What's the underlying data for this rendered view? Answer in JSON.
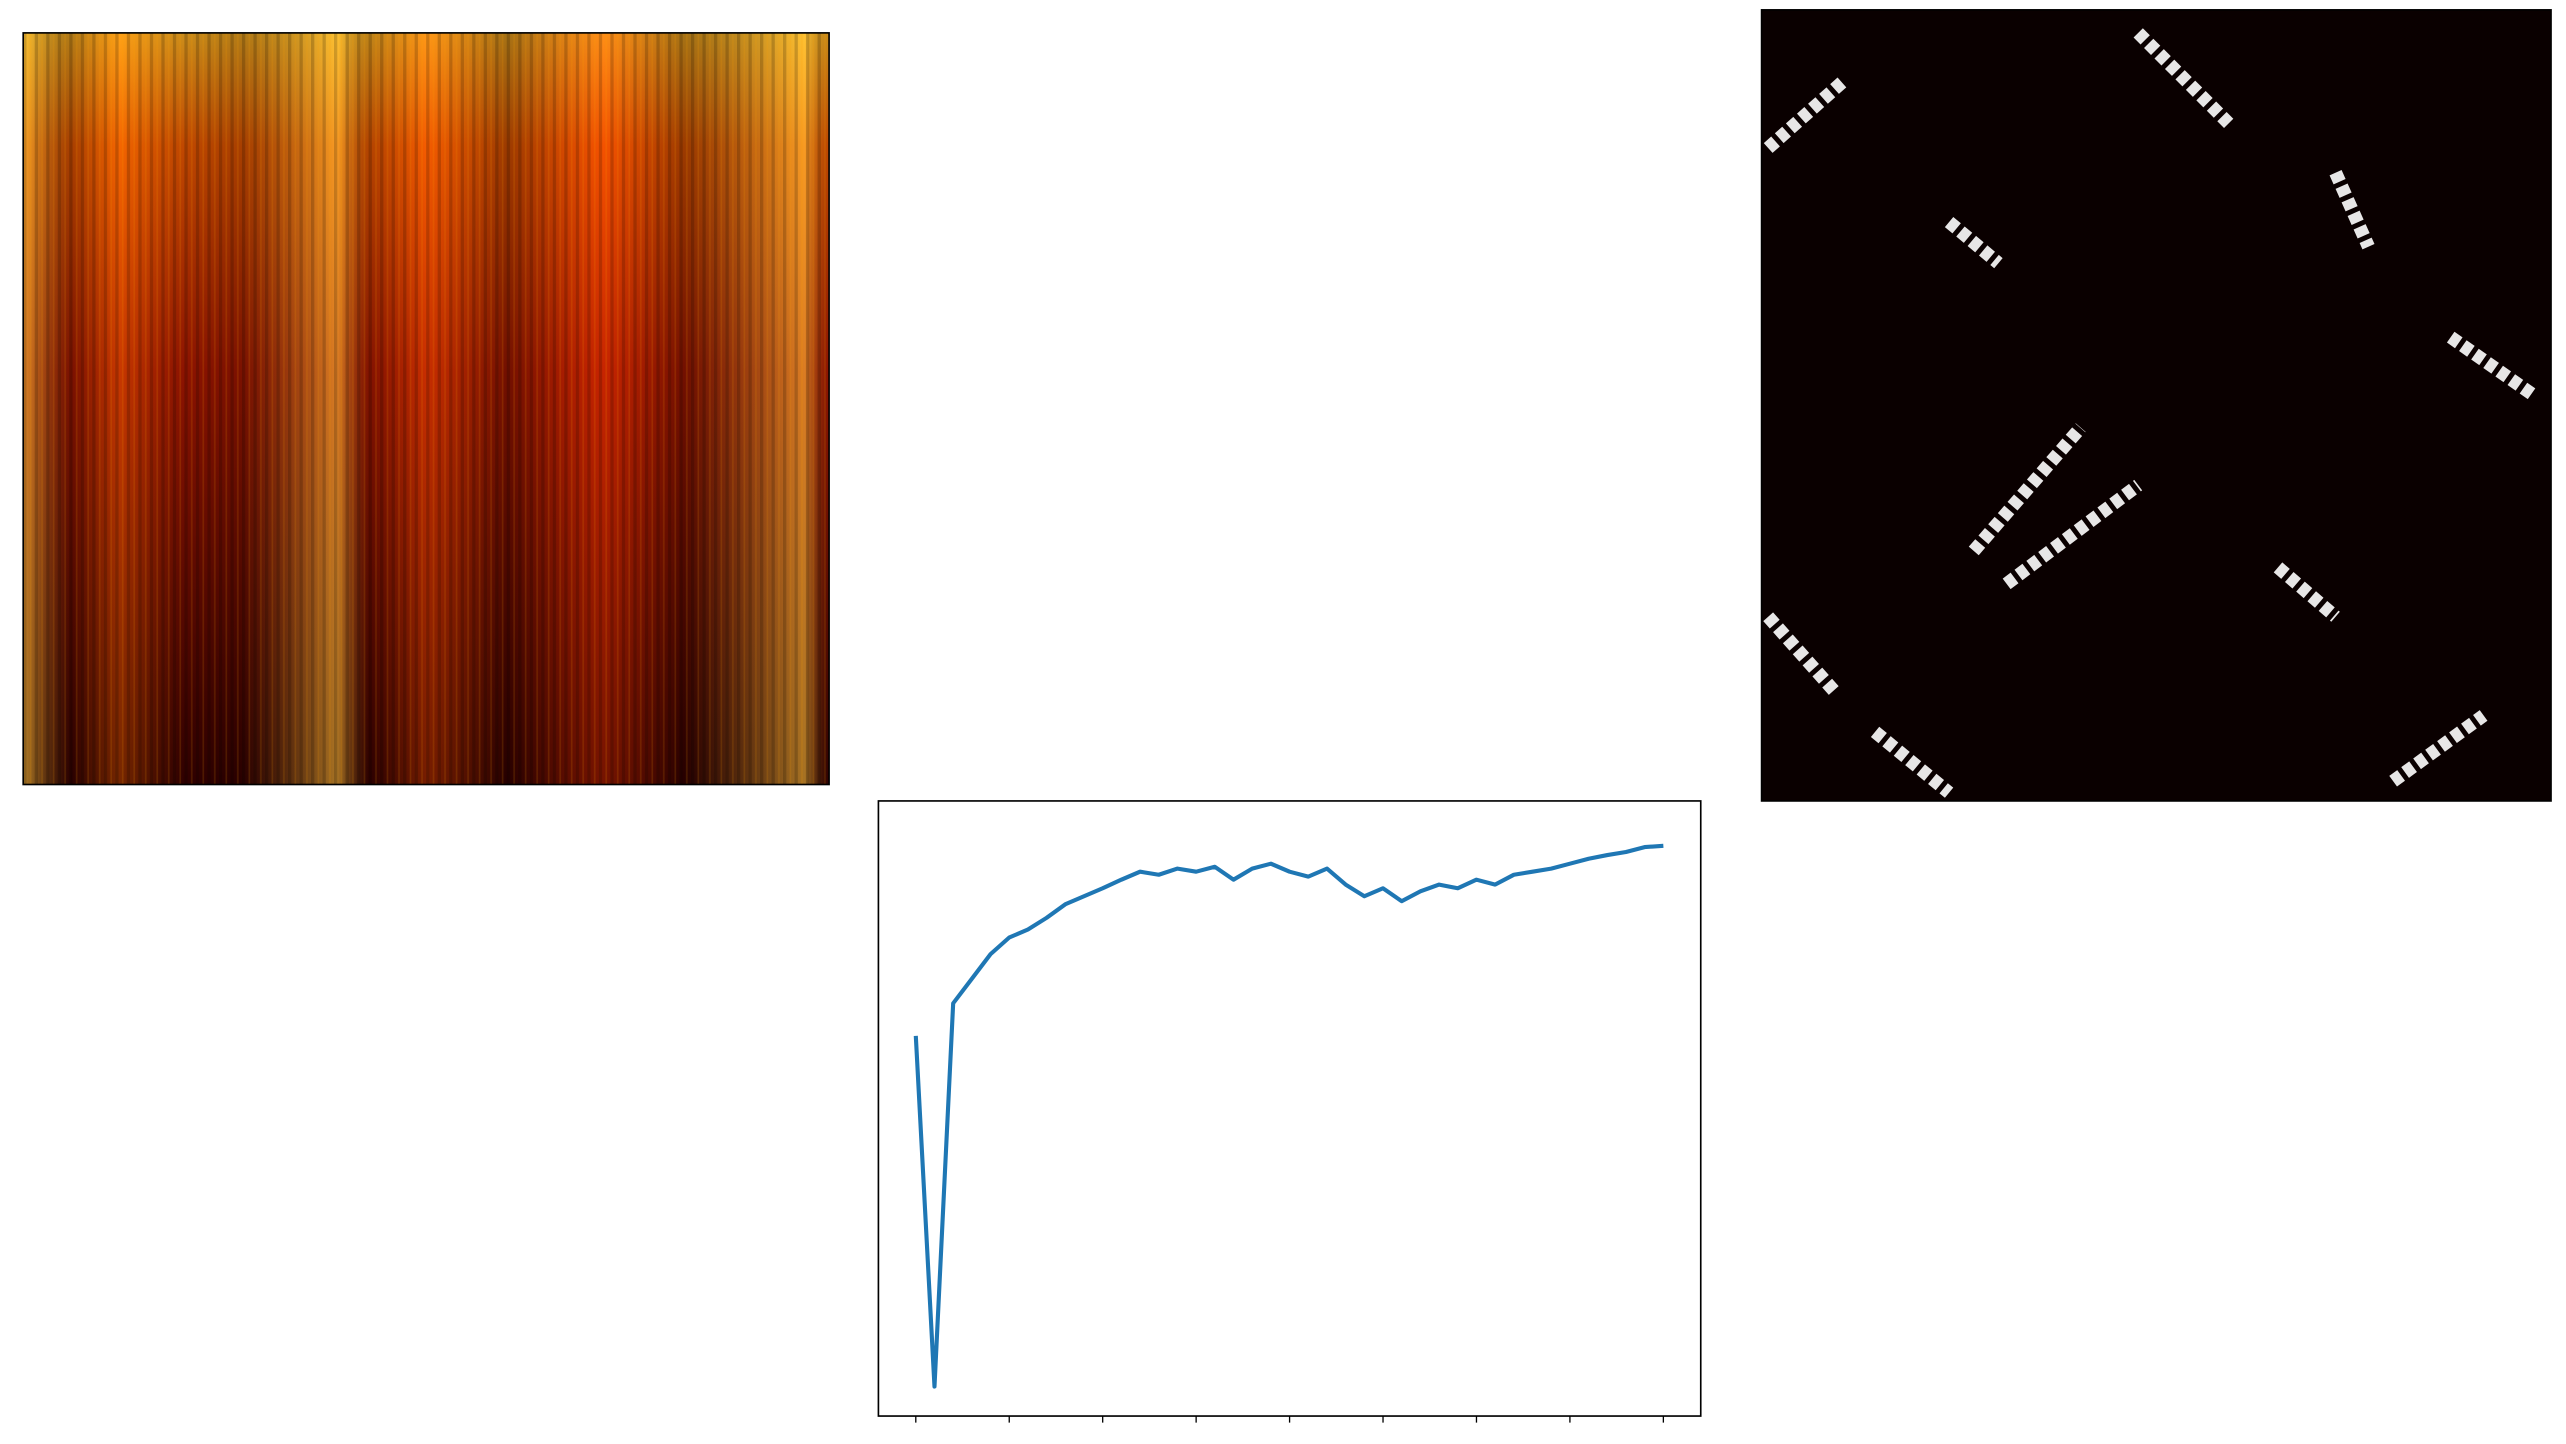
{
  "chart_data": {
    "type": "line",
    "x": [
      0,
      0.2,
      0.4,
      0.6,
      0.8,
      1,
      1.2,
      1.4,
      1.6,
      1.8,
      2,
      2.2,
      2.4,
      2.6,
      2.8,
      3,
      3.2,
      3.4,
      3.6,
      3.8,
      4,
      4.2,
      4.4,
      4.6,
      4.8,
      5,
      5.2,
      5.4,
      5.6,
      5.8,
      6,
      6.2,
      6.4,
      6.6,
      6.8,
      7,
      7.2,
      7.4,
      7.6,
      7.8,
      8
    ],
    "series": [
      {
        "color": "#1f77b4",
        "values": [
          0.618,
          0.048,
          0.671,
          0.711,
          0.751,
          0.778,
          0.791,
          0.81,
          0.832,
          0.845,
          0.858,
          0.872,
          0.885,
          0.88,
          0.89,
          0.885,
          0.893,
          0.872,
          0.89,
          0.898,
          0.885,
          0.877,
          0.89,
          0.864,
          0.845,
          0.858,
          0.837,
          0.853,
          0.864,
          0.858,
          0.872,
          0.864,
          0.88,
          0.885,
          0.89,
          0.898,
          0.906,
          0.912,
          0.917,
          0.925,
          0.927
        ]
      }
    ],
    "xlim": [
      -0.4,
      8.4
    ],
    "ylim": [
      0,
      1
    ],
    "xticks": [
      0,
      1,
      2,
      3,
      4,
      5,
      6,
      7,
      8
    ]
  }
}
